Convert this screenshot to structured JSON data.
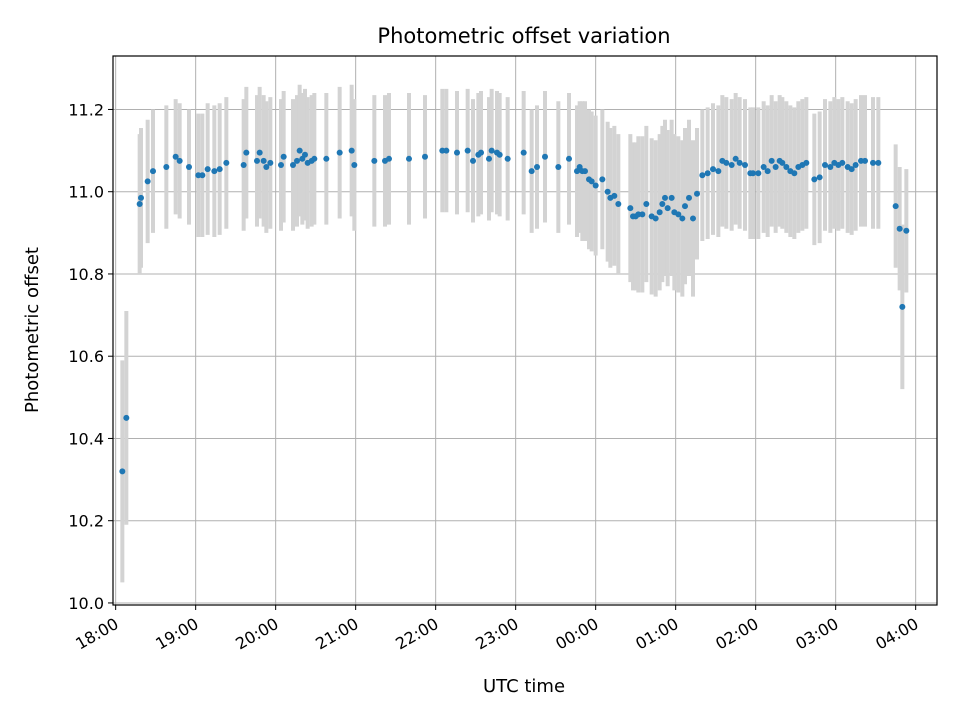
{
  "chart_data": {
    "type": "scatter",
    "title": "Photometric offset variation",
    "xlabel": "UTC time",
    "ylabel": "Photometric offset",
    "x_tick_labels": [
      "18:00",
      "19:00",
      "20:00",
      "21:00",
      "22:00",
      "23:00",
      "00:00",
      "01:00",
      "02:00",
      "03:00",
      "04:00"
    ],
    "y_tick_labels": [
      "10.0",
      "10.2",
      "10.4",
      "10.6",
      "10.8",
      "11.0",
      "11.2"
    ],
    "y_ticks": [
      10.0,
      10.2,
      10.4,
      10.6,
      10.8,
      11.0,
      11.2
    ],
    "xlim": [
      "17:58",
      "04:16"
    ],
    "ylim": [
      9.995,
      11.33
    ],
    "grid": true,
    "marker_color": "#1f77b4",
    "errorbar_color": "#d3d3d3",
    "series": [
      {
        "x": [
          "18:05",
          "18:08",
          "18:18",
          "18:19",
          "18:24",
          "18:28",
          "18:38",
          "18:45",
          "18:48",
          "18:55",
          "19:02",
          "19:05",
          "19:09",
          "19:14",
          "19:18",
          "19:23",
          "19:36",
          "19:38",
          "19:46",
          "19:48",
          "19:51",
          "19:53",
          "19:56",
          "20:04",
          "20:06",
          "20:13",
          "20:16",
          "20:18",
          "20:20",
          "20:22",
          "20:24",
          "20:27",
          "20:29",
          "20:38",
          "20:48",
          "20:57",
          "20:59",
          "21:14",
          "21:22",
          "21:25",
          "21:40",
          "21:52",
          "22:05",
          "22:08",
          "22:16",
          "22:24",
          "22:28",
          "22:32",
          "22:34",
          "22:40",
          "22:42",
          "22:46",
          "22:48",
          "22:54",
          "23:06",
          "23:12",
          "23:16",
          "23:22",
          "23:32",
          "23:40",
          "23:46",
          "23:48",
          "23:50",
          "23:52",
          "23:55",
          "23:57",
          "00:00",
          "00:05",
          "00:09",
          "00:11",
          "00:14",
          "00:17",
          "00:26",
          "00:28",
          "00:30",
          "00:32",
          "00:35",
          "00:38",
          "00:42",
          "00:45",
          "00:48",
          "00:50",
          "00:52",
          "00:54",
          "00:57",
          "00:59",
          "01:02",
          "01:05",
          "01:07",
          "01:10",
          "01:13",
          "01:16",
          "01:20",
          "01:24",
          "01:28",
          "01:32",
          "01:35",
          "01:38",
          "01:42",
          "01:45",
          "01:48",
          "01:52",
          "01:56",
          "01:58",
          "02:02",
          "02:06",
          "02:09",
          "02:12",
          "02:15",
          "02:18",
          "02:20",
          "02:23",
          "02:26",
          "02:29",
          "02:32",
          "02:35",
          "02:38",
          "02:44",
          "02:48",
          "02:52",
          "02:56",
          "02:59",
          "03:02",
          "03:05",
          "03:09",
          "03:12",
          "03:15",
          "03:19",
          "03:22",
          "03:28",
          "03:32",
          "03:45",
          "03:48",
          "03:50",
          "03:53"
        ],
        "y": [
          10.32,
          10.45,
          10.97,
          10.985,
          11.025,
          11.05,
          11.06,
          11.085,
          11.075,
          11.06,
          11.04,
          11.04,
          11.055,
          11.05,
          11.055,
          11.07,
          11.065,
          11.095,
          11.075,
          11.095,
          11.075,
          11.06,
          11.07,
          11.065,
          11.085,
          11.065,
          11.075,
          11.1,
          11.08,
          11.09,
          11.07,
          11.075,
          11.08,
          11.08,
          11.095,
          11.1,
          11.065,
          11.075,
          11.075,
          11.08,
          11.08,
          11.085,
          11.1,
          11.1,
          11.095,
          11.1,
          11.075,
          11.09,
          11.095,
          11.08,
          11.1,
          11.095,
          11.09,
          11.08,
          11.095,
          11.05,
          11.06,
          11.085,
          11.06,
          11.08,
          11.05,
          11.06,
          11.05,
          11.05,
          11.03,
          11.025,
          11.015,
          11.03,
          11.0,
          10.985,
          10.99,
          10.97,
          10.96,
          10.94,
          10.94,
          10.945,
          10.945,
          10.97,
          10.94,
          10.935,
          10.95,
          10.97,
          10.985,
          10.96,
          10.985,
          10.95,
          10.945,
          10.935,
          10.965,
          10.985,
          10.935,
          10.995,
          11.04,
          11.045,
          11.055,
          11.05,
          11.075,
          11.07,
          11.065,
          11.08,
          11.07,
          11.065,
          11.045,
          11.045,
          11.045,
          11.06,
          11.05,
          11.075,
          11.06,
          11.075,
          11.07,
          11.06,
          11.05,
          11.045,
          11.06,
          11.065,
          11.07,
          11.03,
          11.035,
          11.065,
          11.06,
          11.07,
          11.065,
          11.07,
          11.06,
          11.055,
          11.065,
          11.075,
          11.075,
          11.07,
          11.07,
          10.965,
          10.91,
          10.72,
          10.905
        ],
        "err": [
          0.27,
          0.26,
          0.17,
          0.17,
          0.15,
          0.15,
          0.15,
          0.14,
          0.14,
          0.14,
          0.15,
          0.15,
          0.16,
          0.16,
          0.16,
          0.16,
          0.16,
          0.16,
          0.16,
          0.16,
          0.16,
          0.16,
          0.16,
          0.16,
          0.16,
          0.16,
          0.16,
          0.16,
          0.16,
          0.16,
          0.16,
          0.16,
          0.16,
          0.16,
          0.16,
          0.16,
          0.16,
          0.16,
          0.16,
          0.16,
          0.16,
          0.15,
          0.15,
          0.15,
          0.15,
          0.15,
          0.15,
          0.15,
          0.15,
          0.15,
          0.15,
          0.15,
          0.15,
          0.15,
          0.15,
          0.15,
          0.15,
          0.16,
          0.16,
          0.16,
          0.16,
          0.16,
          0.17,
          0.17,
          0.17,
          0.17,
          0.17,
          0.17,
          0.17,
          0.17,
          0.17,
          0.17,
          0.18,
          0.18,
          0.18,
          0.19,
          0.19,
          0.19,
          0.19,
          0.19,
          0.19,
          0.19,
          0.19,
          0.19,
          0.19,
          0.19,
          0.19,
          0.19,
          0.19,
          0.19,
          0.19,
          0.16,
          0.16,
          0.16,
          0.16,
          0.16,
          0.16,
          0.16,
          0.16,
          0.16,
          0.16,
          0.16,
          0.16,
          0.16,
          0.16,
          0.16,
          0.16,
          0.16,
          0.16,
          0.16,
          0.16,
          0.16,
          0.16,
          0.16,
          0.16,
          0.16,
          0.16,
          0.16,
          0.16,
          0.16,
          0.16,
          0.16,
          0.16,
          0.16,
          0.16,
          0.16,
          0.16,
          0.16,
          0.16,
          0.16,
          0.16,
          0.15,
          0.15,
          0.2,
          0.15
        ]
      }
    ]
  }
}
